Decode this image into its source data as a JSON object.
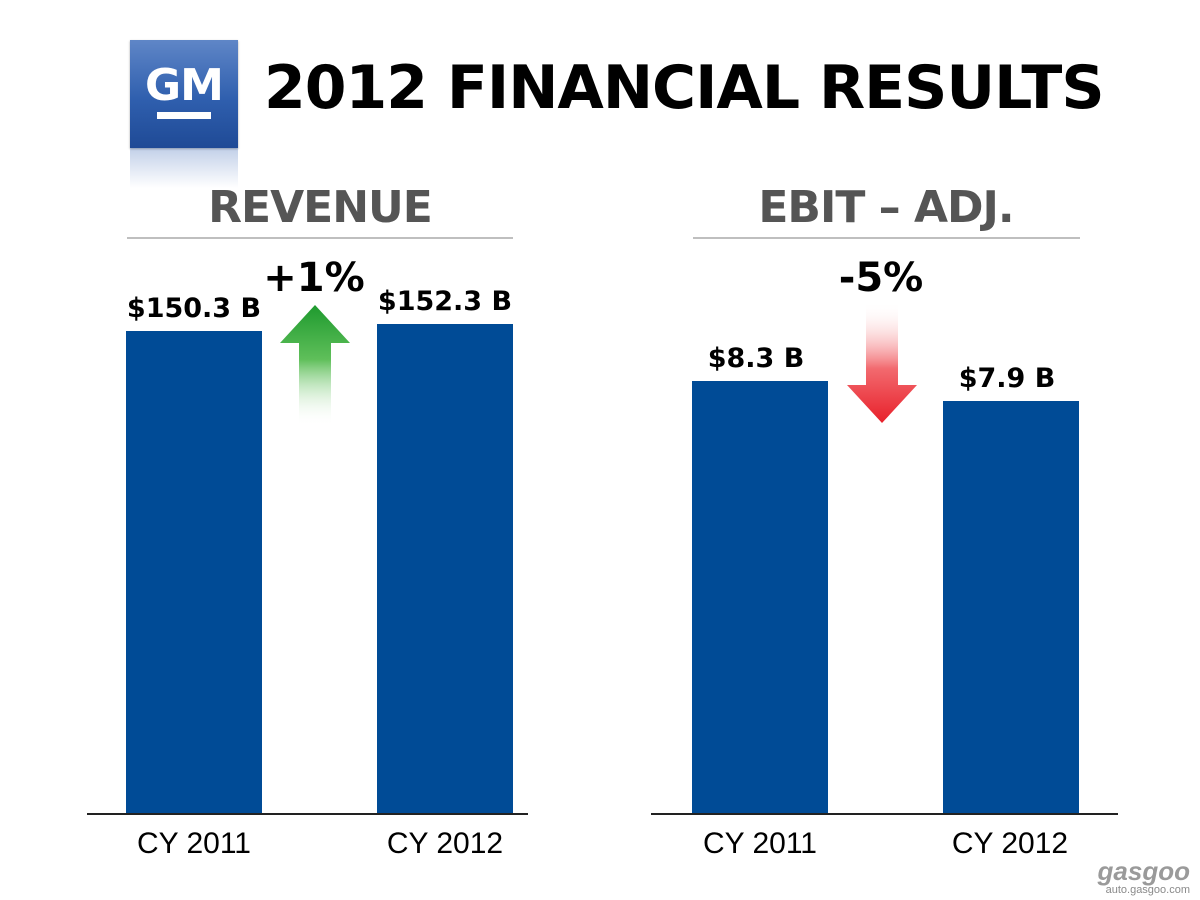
{
  "header": {
    "logo_text": "GM",
    "title": "2012 FINANCIAL RESULTS"
  },
  "chart_data": [
    {
      "type": "bar",
      "title": "REVENUE",
      "categories": [
        "CY 2011",
        "CY 2012"
      ],
      "values": [
        150.3,
        152.3
      ],
      "value_labels": [
        "$150.3 B",
        "$152.3 B"
      ],
      "change_label": "+1%",
      "change_direction": "up",
      "ylim": [
        0,
        162
      ],
      "bar_color": "#004b96",
      "arrow_color": "#1e9a2e"
    },
    {
      "type": "bar",
      "title": "EBIT – ADJ.",
      "categories": [
        "CY 2011",
        "CY 2012"
      ],
      "values": [
        8.3,
        7.9
      ],
      "value_labels": [
        "$8.3 B",
        "$7.9 B"
      ],
      "change_label": "-5%",
      "change_direction": "down",
      "ylim": [
        0,
        9.98
      ],
      "bar_color": "#004b96",
      "arrow_color": "#e8202a"
    }
  ],
  "watermark": {
    "brand": "gasgoo",
    "site": "auto.gasgoo.com"
  }
}
